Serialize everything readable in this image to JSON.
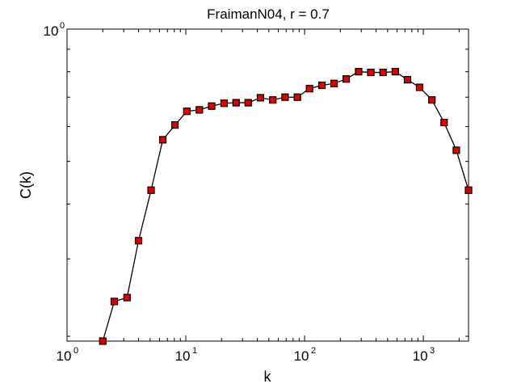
{
  "chart_data": {
    "type": "line",
    "title": "FraimanN04, r = 0.7",
    "xlabel": "k",
    "ylabel": "C(k)",
    "x_scale": "log",
    "xlim": [
      1,
      2400
    ],
    "ylim": [
      0.195,
      1.0
    ],
    "x_tick_labels": [
      {
        "base": "10",
        "exp": "0",
        "value": 1
      },
      {
        "base": "10",
        "exp": "1",
        "value": 10
      },
      {
        "base": "10",
        "exp": "2",
        "value": 100
      },
      {
        "base": "10",
        "exp": "3",
        "value": 1000
      }
    ],
    "y_tick_labels": [
      {
        "base": "10",
        "exp": "0",
        "value": 1.0
      }
    ],
    "grid": false,
    "marker": "square",
    "marker_color": "#dd0000",
    "line_color": "#000000",
    "series": [
      {
        "x": [
          2,
          2.5,
          3.2,
          4,
          5.1,
          6.4,
          8.1,
          10.2,
          13,
          16.5,
          21,
          26.5,
          33.5,
          42.5,
          54,
          68.5,
          87,
          110,
          140,
          177,
          224,
          285,
          361,
          458,
          580,
          735,
          930,
          1180,
          1495,
          1895,
          2400
        ],
        "y": [
          0.195,
          0.24,
          0.245,
          0.33,
          0.43,
          0.56,
          0.605,
          0.65,
          0.655,
          0.668,
          0.678,
          0.68,
          0.68,
          0.698,
          0.69,
          0.7,
          0.7,
          0.732,
          0.745,
          0.752,
          0.77,
          0.8,
          0.797,
          0.797,
          0.8,
          0.767,
          0.737,
          0.69,
          0.613,
          0.53,
          0.43
        ]
      }
    ]
  }
}
